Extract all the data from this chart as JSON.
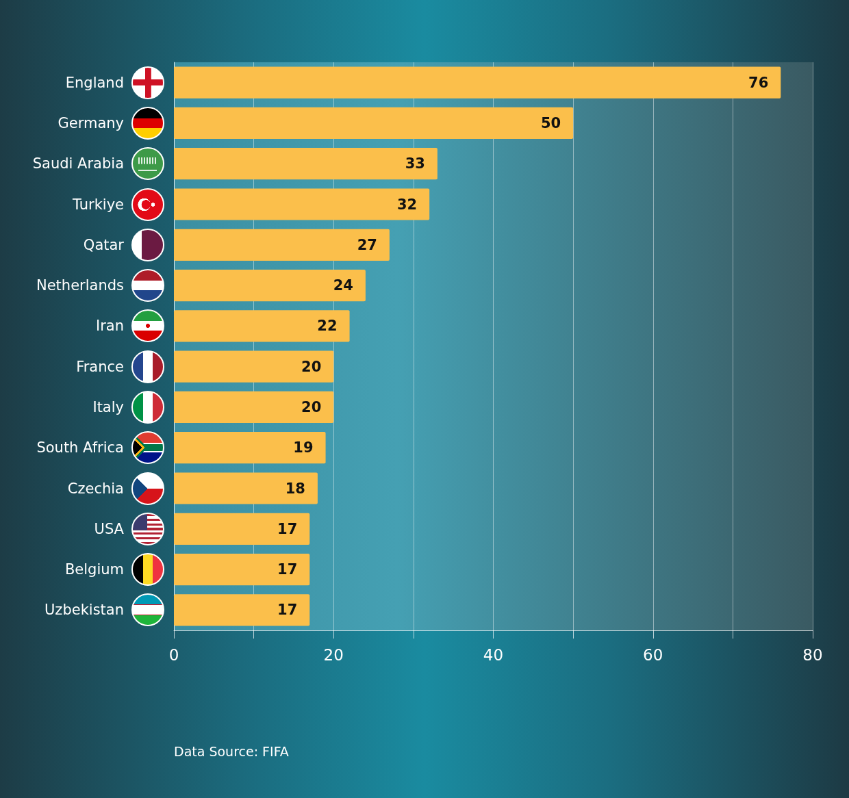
{
  "chart_data": {
    "type": "bar",
    "orientation": "horizontal",
    "categories": [
      "England",
      "Germany",
      "Saudi Arabia",
      "Turkiye",
      "Qatar",
      "Netherlands",
      "Iran",
      "France",
      "Italy",
      "South Africa",
      "Czechia",
      "USA",
      "Belgium",
      "Uzbekistan"
    ],
    "values": [
      76,
      50,
      33,
      32,
      27,
      24,
      22,
      20,
      20,
      19,
      18,
      17,
      17,
      17
    ],
    "color": "#fbbf4b",
    "xlim": [
      0,
      80
    ],
    "xticks": [
      0,
      {
        "value": 10,
        "label": null
      },
      20,
      {
        "value": 30,
        "label": null
      },
      40,
      {
        "value": 50,
        "label": null
      },
      60,
      {
        "value": 70,
        "label": null
      },
      80
    ],
    "grid": "x",
    "data_labels": true,
    "annotations": [
      "Data Source: FIFA"
    ]
  }
}
